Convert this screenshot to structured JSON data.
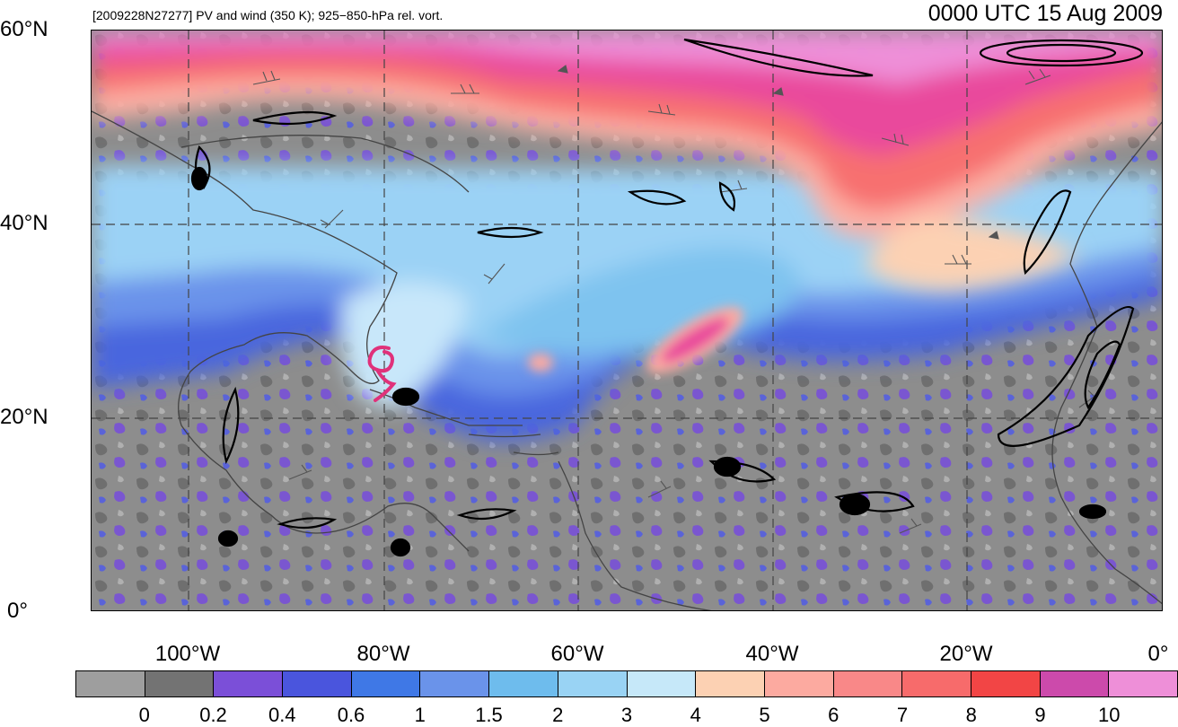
{
  "header": {
    "subtitle": "[2009228N27277] PV and wind (350 K); 925−850-hPa rel. vort.",
    "timestamp": "0000 UTC 15 Aug 2009"
  },
  "latitudes": [
    {
      "label": "60°N",
      "value": 60
    },
    {
      "label": "40°N",
      "value": 40
    },
    {
      "label": "20°N",
      "value": 20
    },
    {
      "label": "0°",
      "value": 0
    }
  ],
  "longitudes": [
    {
      "label": "100°W",
      "value": -100
    },
    {
      "label": "80°W",
      "value": -80
    },
    {
      "label": "60°W",
      "value": -60
    },
    {
      "label": "40°W",
      "value": -40
    },
    {
      "label": "20°W",
      "value": -20
    },
    {
      "label": "0°",
      "value": 0
    }
  ],
  "colorbar": {
    "colors": [
      "#9e9e9e",
      "#737373",
      "#7b4fd8",
      "#4a55dd",
      "#3f78e6",
      "#6a93ea",
      "#6ebced",
      "#99d3f4",
      "#c6e8f9",
      "#fcd1b3",
      "#fcaaa0",
      "#f98888",
      "#f76b6b",
      "#f24545",
      "#cc4aab",
      "#ee8fd8"
    ],
    "labels": [
      "0",
      "0.2",
      "0.4",
      "0.6",
      "1",
      "1.5",
      "2",
      "3",
      "4",
      "5",
      "6",
      "7",
      "8",
      "9",
      "10"
    ]
  },
  "storm": {
    "symbol": "tropical-cyclone-icon",
    "color": "#e0317a"
  }
}
